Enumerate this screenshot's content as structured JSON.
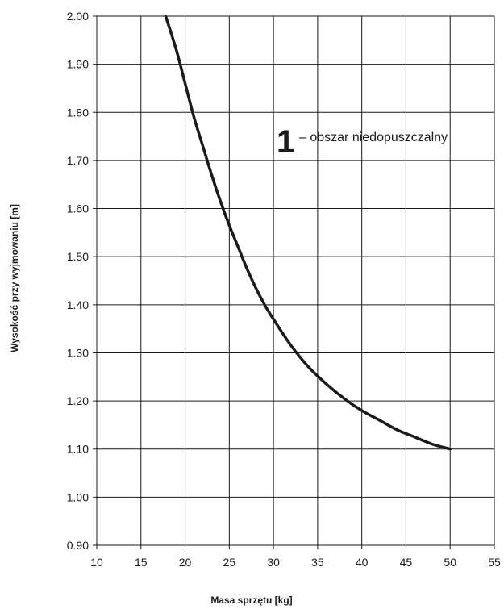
{
  "chart_data": {
    "type": "line",
    "xlabel": "Masa sprzętu [kg]",
    "ylabel": "Wysokość przy wyjmowaniu [m]",
    "xlim": [
      10,
      55
    ],
    "ylim": [
      0.9,
      2.0
    ],
    "x_ticks": [
      10,
      15,
      20,
      25,
      30,
      35,
      40,
      45,
      50,
      55
    ],
    "y_ticks": [
      0.9,
      1.0,
      1.1,
      1.2,
      1.3,
      1.4,
      1.5,
      1.6,
      1.7,
      1.8,
      1.9,
      2.0
    ],
    "x_tick_labels": [
      "10",
      "15",
      "20",
      "25",
      "30",
      "35",
      "40",
      "45",
      "50",
      "55"
    ],
    "y_tick_labels": [
      "0.90",
      "1.00",
      "1.10",
      "1.20",
      "1.30",
      "1.40",
      "1.50",
      "1.60",
      "1.70",
      "1.80",
      "1.90",
      "2.00"
    ],
    "grid": true,
    "annotation": {
      "number": "1",
      "text": "– obszar niedopuszczalny"
    },
    "series": [
      {
        "x": [
          17.8,
          19,
          20,
          21,
          22,
          23,
          24,
          25,
          26,
          27,
          28,
          29,
          30,
          32,
          34,
          36,
          38,
          40,
          42,
          44,
          46,
          48,
          50
        ],
        "y": [
          2.0,
          1.93,
          1.86,
          1.79,
          1.73,
          1.67,
          1.615,
          1.565,
          1.52,
          1.475,
          1.435,
          1.4,
          1.37,
          1.315,
          1.27,
          1.235,
          1.205,
          1.18,
          1.16,
          1.14,
          1.125,
          1.11,
          1.1
        ],
        "color": "#1a1a1a"
      }
    ]
  }
}
